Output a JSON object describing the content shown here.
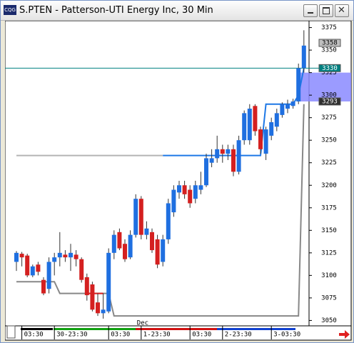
{
  "chart_data": {
    "type": "candlestick",
    "title": "S.PTEN - Patterson-UTI Energy Inc, 30 Min",
    "ylim": [
      3044,
      3381
    ],
    "yticks": [
      3050,
      3075,
      3100,
      3125,
      3150,
      3175,
      3200,
      3225,
      3250,
      3275,
      3300,
      3325,
      3350,
      3375
    ],
    "up_color": "#1f6fe0",
    "down_color": "#d42020",
    "categories": [
      null,
      "03:30",
      null,
      null,
      null,
      null,
      null,
      "30-23:30",
      null,
      null,
      null,
      null,
      null,
      null,
      null,
      null,
      null,
      "03:30",
      null,
      null,
      null,
      null,
      null,
      "1-23:30",
      null,
      null,
      null,
      null,
      null,
      null,
      null,
      null,
      "03:30",
      null,
      null,
      null,
      null,
      null,
      "2-23:30",
      null,
      null,
      null,
      null,
      null,
      null,
      null,
      null,
      "3-03:30",
      null,
      null,
      null,
      null,
      null,
      null
    ],
    "annotations": [
      {
        "text": "Dec",
        "index": 23
      }
    ],
    "open": [
      3115,
      3124,
      3122,
      3100,
      3112,
      3095,
      3085,
      3115,
      3120,
      3123,
      3120,
      3123,
      3118,
      3098,
      3090,
      3070,
      3058,
      3060,
      3125,
      3148,
      3135,
      3120,
      3145,
      3185,
      3145,
      3148,
      3140,
      3115,
      3140,
      3170,
      3192,
      3200,
      3195,
      3185,
      3195,
      3200,
      3225,
      3230,
      3240,
      3235,
      3240,
      3215,
      3250,
      3250,
      3288,
      3262,
      3235,
      3255,
      3265,
      3278,
      3285,
      3288,
      3293,
      3330
    ],
    "high": [
      3127,
      3126,
      3124,
      3112,
      3115,
      3098,
      3120,
      3125,
      3148,
      3128,
      3135,
      3128,
      3120,
      3102,
      3093,
      3080,
      3080,
      3130,
      3150,
      3152,
      3140,
      3150,
      3190,
      3188,
      3160,
      3152,
      3145,
      3145,
      3185,
      3200,
      3205,
      3205,
      3200,
      3205,
      3215,
      3235,
      3240,
      3255,
      3245,
      3245,
      3245,
      3255,
      3283,
      3290,
      3290,
      3265,
      3265,
      3275,
      3285,
      3292,
      3295,
      3296,
      3335,
      3372
    ],
    "low": [
      3105,
      3110,
      3098,
      3098,
      3100,
      3078,
      3080,
      3100,
      3110,
      3115,
      3105,
      3110,
      3092,
      3072,
      3060,
      3055,
      3052,
      3058,
      3118,
      3128,
      3115,
      3118,
      3142,
      3140,
      3140,
      3125,
      3108,
      3110,
      3135,
      3165,
      3185,
      3185,
      3175,
      3180,
      3190,
      3198,
      3220,
      3225,
      3225,
      3228,
      3210,
      3212,
      3245,
      3245,
      3255,
      3235,
      3228,
      3250,
      3260,
      3275,
      3280,
      3285,
      3290,
      3325
    ],
    "close": [
      3125,
      3120,
      3100,
      3110,
      3104,
      3080,
      3115,
      3120,
      3125,
      3120,
      3125,
      3118,
      3095,
      3078,
      3062,
      3058,
      3062,
      3125,
      3145,
      3130,
      3118,
      3145,
      3185,
      3145,
      3152,
      3128,
      3112,
      3140,
      3180,
      3195,
      3200,
      3190,
      3180,
      3200,
      3200,
      3230,
      3230,
      3240,
      3235,
      3240,
      3215,
      3250,
      3280,
      3285,
      3260,
      3240,
      3262,
      3270,
      3280,
      3290,
      3290,
      3293,
      3330,
      3355
    ],
    "lines": [
      {
        "color": "#b4b4b4",
        "values": [
          3233,
          3233,
          3233,
          3233,
          3233,
          3233,
          3233,
          3233,
          3233,
          3233,
          3233,
          3233,
          3233,
          3233,
          3233,
          3233,
          3233,
          3233,
          3233,
          3233,
          3233,
          3233,
          3233,
          3233,
          3233,
          3233,
          3233,
          3233,
          null,
          null,
          null,
          null,
          null,
          null,
          null,
          null,
          null,
          null,
          null,
          null,
          null,
          null,
          null,
          null,
          null,
          null,
          null,
          null,
          null,
          null,
          null,
          null,
          null,
          null
        ]
      },
      {
        "color": "#1e78e6",
        "values": [
          null,
          null,
          null,
          null,
          null,
          null,
          null,
          null,
          null,
          null,
          null,
          null,
          null,
          null,
          null,
          null,
          null,
          null,
          null,
          null,
          null,
          null,
          null,
          null,
          null,
          null,
          null,
          3233,
          3233,
          3233,
          3233,
          3233,
          3233,
          3233,
          3233,
          3233,
          3233,
          3233,
          3233,
          3233,
          3233,
          3233,
          3233,
          3233,
          3233,
          3233,
          3290,
          3290,
          3290,
          3290,
          3290,
          3290,
          3300,
          3330
        ]
      },
      {
        "color": "#888888",
        "values": [
          3093,
          3093,
          3093,
          3093,
          3093,
          3093,
          3093,
          3093,
          3080,
          3080,
          3080,
          3080,
          3080,
          3080,
          3080,
          3080,
          3080,
          3080,
          3055,
          3055,
          3055,
          3055,
          3055,
          3055,
          3055,
          3055,
          3055,
          3055,
          3055,
          3055,
          3055,
          3055,
          3055,
          3055,
          3055,
          3055,
          3055,
          3055,
          3055,
          3055,
          3055,
          3055,
          3055,
          3055,
          3055,
          3055,
          3055,
          3055,
          3055,
          3055,
          3055,
          3055,
          3055,
          3290
        ]
      },
      {
        "color": "#e02020",
        "values": [
          null,
          null,
          null,
          null,
          null,
          null,
          null,
          null,
          null,
          null,
          null,
          null,
          null,
          3080,
          3080,
          3080,
          3080,
          null,
          null,
          null,
          null,
          null,
          null,
          null,
          null,
          null,
          null,
          null,
          null,
          null,
          null,
          null,
          null,
          null,
          null,
          null,
          null,
          null,
          null,
          null,
          null,
          null,
          null,
          null,
          null,
          null,
          null,
          null,
          null,
          null,
          null,
          null,
          null,
          null
        ]
      }
    ],
    "highlight_band": [
      3293,
      3325
    ],
    "price_markers": [
      {
        "value": 3358,
        "color": "#c0c0c0",
        "text_color": "#000000",
        "line": false
      },
      {
        "value": 3330,
        "color": "#008080",
        "text_color": "#ffffff",
        "line": true
      },
      {
        "value": 3293,
        "color": "#303030",
        "text_color": "#ffffff",
        "line": false
      }
    ]
  }
}
